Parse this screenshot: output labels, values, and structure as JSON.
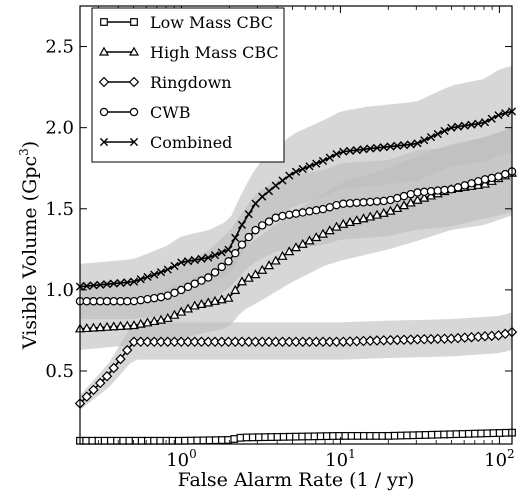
{
  "chart_data": {
    "type": "line",
    "title": "",
    "xlabel": "False Alarm Rate (1 / yr)",
    "ylabel": "Visible Volume (Gpc",
    "ylabel_superscript": "3",
    "ylabel_suffix": ")",
    "x_scale": "log",
    "xlim": [
      0.23,
      120
    ],
    "ylim": [
      0.05,
      2.75
    ],
    "x_ticks": [
      {
        "value": 1,
        "base": "10",
        "exp": "0"
      },
      {
        "value": 10,
        "base": "10",
        "exp": "1"
      },
      {
        "value": 100,
        "base": "10",
        "exp": "2"
      }
    ],
    "y_ticks": [
      {
        "value": 0.5,
        "label": "0.5"
      },
      {
        "value": 1.0,
        "label": "1.0"
      },
      {
        "value": 1.5,
        "label": "1.5"
      },
      {
        "value": 2.0,
        "label": "2.0"
      },
      {
        "value": 2.5,
        "label": "2.5"
      }
    ],
    "grid": false,
    "legend_position": "top-left",
    "band_color": "#bdbdbd",
    "series": [
      {
        "name": "Low Mass CBC",
        "marker": "square",
        "x": [
          0.23,
          0.5,
          1.0,
          2.0,
          2.4,
          5.0,
          10.0,
          20.0,
          50.0,
          120.0
        ],
        "y": [
          0.07,
          0.07,
          0.07,
          0.075,
          0.09,
          0.095,
          0.1,
          0.1,
          0.11,
          0.12
        ],
        "upper": [
          0.08,
          0.08,
          0.08,
          0.085,
          0.1,
          0.105,
          0.11,
          0.11,
          0.12,
          0.13
        ],
        "lower": [
          0.06,
          0.06,
          0.06,
          0.065,
          0.08,
          0.085,
          0.09,
          0.09,
          0.1,
          0.11
        ]
      },
      {
        "name": "High Mass CBC",
        "marker": "triangle",
        "x": [
          0.23,
          0.5,
          0.8,
          1.2,
          2.0,
          2.4,
          3.0,
          5.0,
          8.0,
          10.0,
          20.0,
          30.0,
          50.0,
          80.0,
          120.0
        ],
        "y": [
          0.76,
          0.78,
          0.82,
          0.9,
          0.95,
          1.05,
          1.1,
          1.25,
          1.35,
          1.4,
          1.48,
          1.55,
          1.62,
          1.65,
          1.72
        ],
        "upper": [
          0.9,
          0.94,
          1.0,
          1.08,
          1.15,
          1.25,
          1.32,
          1.48,
          1.6,
          1.66,
          1.75,
          1.82,
          1.9,
          1.94,
          2.0
        ],
        "lower": [
          0.63,
          0.66,
          0.68,
          0.72,
          0.77,
          0.87,
          0.92,
          1.05,
          1.15,
          1.18,
          1.25,
          1.3,
          1.37,
          1.4,
          1.46
        ]
      },
      {
        "name": "Ringdown",
        "marker": "diamond",
        "x": [
          0.23,
          0.35,
          0.5,
          1.0,
          2.0,
          5.0,
          10.0,
          20.0,
          50.0,
          100.0,
          120.0
        ],
        "y": [
          0.3,
          0.48,
          0.68,
          0.68,
          0.68,
          0.68,
          0.68,
          0.69,
          0.7,
          0.72,
          0.74
        ],
        "upper": [
          0.35,
          0.55,
          0.8,
          0.8,
          0.8,
          0.8,
          0.8,
          0.81,
          0.82,
          0.84,
          0.86
        ],
        "lower": [
          0.26,
          0.4,
          0.57,
          0.57,
          0.57,
          0.57,
          0.57,
          0.58,
          0.59,
          0.61,
          0.63
        ]
      },
      {
        "name": "CWB",
        "marker": "circle",
        "x": [
          0.23,
          0.5,
          0.8,
          1.0,
          1.5,
          2.0,
          2.5,
          3.0,
          4.0,
          6.0,
          8.0,
          10.0,
          20.0,
          30.0,
          50.0,
          80.0,
          100.0,
          120.0
        ],
        "y": [
          0.93,
          0.93,
          0.96,
          1.0,
          1.08,
          1.18,
          1.3,
          1.38,
          1.45,
          1.48,
          1.5,
          1.53,
          1.55,
          1.6,
          1.62,
          1.68,
          1.7,
          1.73
        ],
        "upper": [
          1.05,
          1.05,
          1.1,
          1.15,
          1.25,
          1.36,
          1.5,
          1.6,
          1.68,
          1.72,
          1.74,
          1.78,
          1.8,
          1.86,
          1.88,
          1.94,
          1.97,
          2.0
        ],
        "lower": [
          0.82,
          0.82,
          0.84,
          0.87,
          0.93,
          1.01,
          1.12,
          1.18,
          1.24,
          1.26,
          1.28,
          1.31,
          1.33,
          1.37,
          1.39,
          1.44,
          1.46,
          1.48
        ]
      },
      {
        "name": "Combined",
        "marker": "x",
        "x": [
          0.23,
          0.5,
          0.8,
          1.0,
          1.5,
          2.0,
          2.4,
          3.0,
          4.0,
          5.0,
          8.0,
          10.0,
          15.0,
          30.0,
          50.0,
          80.0,
          100.0,
          120.0
        ],
        "y": [
          1.02,
          1.05,
          1.12,
          1.17,
          1.2,
          1.25,
          1.4,
          1.55,
          1.65,
          1.72,
          1.8,
          1.85,
          1.87,
          1.9,
          2.0,
          2.03,
          2.08,
          2.1
        ],
        "upper": [
          1.16,
          1.19,
          1.27,
          1.33,
          1.37,
          1.43,
          1.6,
          1.77,
          1.88,
          1.96,
          2.05,
          2.1,
          2.13,
          2.16,
          2.26,
          2.3,
          2.36,
          2.38
        ],
        "lower": [
          0.9,
          0.92,
          0.98,
          1.02,
          1.05,
          1.09,
          1.22,
          1.36,
          1.45,
          1.51,
          1.58,
          1.62,
          1.64,
          1.67,
          1.76,
          1.79,
          1.83,
          1.85
        ]
      }
    ]
  }
}
